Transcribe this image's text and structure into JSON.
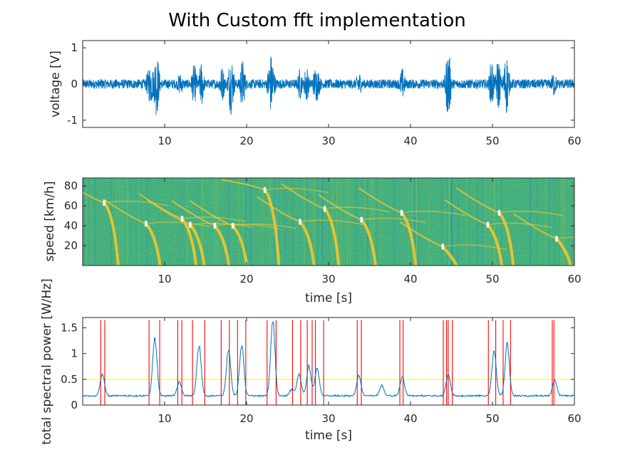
{
  "figure": {
    "title": "With Custom fft implementation"
  },
  "chart_data": [
    {
      "type": "line",
      "name": "voltage-trace",
      "xlabel": "",
      "ylabel": "voltage [V]",
      "xlim": [
        0,
        60
      ],
      "ylim": [
        -1.2,
        1.2
      ],
      "xticks": [
        10,
        20,
        30,
        40,
        50,
        60
      ],
      "yticks": [
        -1,
        0,
        1
      ],
      "grid": false,
      "series_color": "#0072BD",
      "envelope": {
        "baseline_amplitude": 0.13,
        "bursts": [
          {
            "t": 2.3,
            "amp": 0.15,
            "width": 0.8
          },
          {
            "t": 8.3,
            "amp": 0.55,
            "width": 0.9
          },
          {
            "t": 9.0,
            "amp": 0.9,
            "width": 0.6
          },
          {
            "t": 11.9,
            "amp": 0.3,
            "width": 0.7
          },
          {
            "t": 13.6,
            "amp": 0.55,
            "width": 0.6
          },
          {
            "t": 14.5,
            "amp": 0.65,
            "width": 0.5
          },
          {
            "t": 17.0,
            "amp": 0.5,
            "width": 0.6
          },
          {
            "t": 18.1,
            "amp": 0.85,
            "width": 0.6
          },
          {
            "t": 19.5,
            "amp": 0.7,
            "width": 0.6
          },
          {
            "t": 23.0,
            "amp": 0.85,
            "width": 0.7
          },
          {
            "t": 26.5,
            "amp": 0.45,
            "width": 0.5
          },
          {
            "t": 27.3,
            "amp": 0.55,
            "width": 0.5
          },
          {
            "t": 28.5,
            "amp": 0.5,
            "width": 0.8
          },
          {
            "t": 33.7,
            "amp": 0.35,
            "width": 0.6
          },
          {
            "t": 39.0,
            "amp": 0.45,
            "width": 0.6
          },
          {
            "t": 44.6,
            "amp": 0.95,
            "width": 0.6
          },
          {
            "t": 49.9,
            "amp": 0.7,
            "width": 0.5
          },
          {
            "t": 50.7,
            "amp": 0.75,
            "width": 0.5
          },
          {
            "t": 51.7,
            "amp": 0.85,
            "width": 0.6
          },
          {
            "t": 57.5,
            "amp": 0.35,
            "width": 0.6
          }
        ]
      }
    },
    {
      "type": "heatmap",
      "name": "speed-spectrogram",
      "xlabel": "time [s]",
      "ylabel": "speed [km/h]",
      "xlim": [
        0,
        60
      ],
      "ylim": [
        0,
        88
      ],
      "xticks": [
        10,
        20,
        30,
        40,
        50,
        60
      ],
      "yticks": [
        20,
        40,
        60,
        80
      ],
      "colormap": "parula",
      "background_color": "#3fae7e",
      "trace_color": "#f4c72c",
      "marker_color": "#ffffff",
      "vehicle_markers": [
        {
          "t": 2.6,
          "speed": 63
        },
        {
          "t": 7.7,
          "speed": 42
        },
        {
          "t": 12.1,
          "speed": 47
        },
        {
          "t": 13.1,
          "speed": 41
        },
        {
          "t": 16.1,
          "speed": 40
        },
        {
          "t": 18.3,
          "speed": 40
        },
        {
          "t": 22.2,
          "speed": 76
        },
        {
          "t": 26.5,
          "speed": 44
        },
        {
          "t": 29.5,
          "speed": 57
        },
        {
          "t": 34.0,
          "speed": 46
        },
        {
          "t": 38.9,
          "speed": 53
        },
        {
          "t": 43.9,
          "speed": 19
        },
        {
          "t": 49.4,
          "speed": 41
        },
        {
          "t": 50.8,
          "speed": 53
        },
        {
          "t": 57.8,
          "speed": 27
        }
      ]
    },
    {
      "type": "line",
      "name": "total-spectral-power",
      "xlabel": "time [s]",
      "ylabel": "total spectral power [W/Hz]",
      "xlim": [
        0,
        60
      ],
      "ylim": [
        0,
        1.7
      ],
      "xticks": [
        10,
        20,
        30,
        40,
        50,
        60
      ],
      "yticks": [
        0,
        0.5,
        1,
        1.5
      ],
      "grid": false,
      "series_color": "#0072BD",
      "threshold": {
        "value": 0.5,
        "color": "#ffff00"
      },
      "event_line_color": "#ff0000",
      "baseline": 0.18,
      "peaks": [
        {
          "t": 2.4,
          "value": 0.6
        },
        {
          "t": 8.8,
          "value": 1.3
        },
        {
          "t": 11.8,
          "value": 0.45
        },
        {
          "t": 14.2,
          "value": 1.15
        },
        {
          "t": 17.8,
          "value": 1.1
        },
        {
          "t": 19.4,
          "value": 1.17
        },
        {
          "t": 23.2,
          "value": 1.65
        },
        {
          "t": 25.5,
          "value": 0.3
        },
        {
          "t": 26.4,
          "value": 0.6
        },
        {
          "t": 27.6,
          "value": 0.75
        },
        {
          "t": 28.6,
          "value": 0.72
        },
        {
          "t": 33.7,
          "value": 0.58
        },
        {
          "t": 36.5,
          "value": 0.38
        },
        {
          "t": 39.0,
          "value": 0.55
        },
        {
          "t": 44.6,
          "value": 0.6
        },
        {
          "t": 50.2,
          "value": 1.05
        },
        {
          "t": 51.8,
          "value": 1.18
        },
        {
          "t": 57.6,
          "value": 0.48
        }
      ],
      "event_lines": [
        2.2,
        2.7,
        8.1,
        9.4,
        11.6,
        12.1,
        13.4,
        14.9,
        16.9,
        17.9,
        18.9,
        19.9,
        22.5,
        23.6,
        25.6,
        26.6,
        27.4,
        28.0,
        28.4,
        29.4,
        33.5,
        34.0,
        38.7,
        39.1,
        44.0,
        44.4,
        44.6,
        45.1,
        49.5,
        50.4,
        51.3,
        52.2,
        57.3,
        57.5
      ]
    }
  ]
}
